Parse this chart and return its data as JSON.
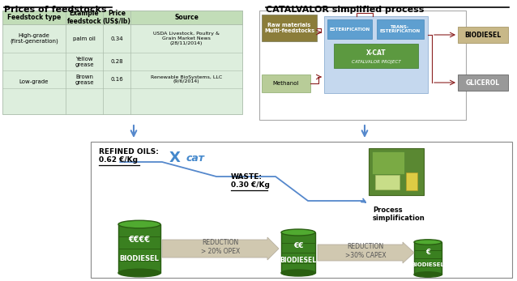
{
  "title_left": "Prices of feedstocks",
  "title_right": "CATALVALOR simplified process",
  "table_bg": "#ddeedd",
  "table_header_bg": "#c2ddb8",
  "raw_materials_color": "#8b7d3a",
  "methanol_color": "#b8cc98",
  "process_box_bg": "#c5d8ee",
  "esterification_color": "#5e9fd0",
  "xcat_color": "#5c9940",
  "biodiesel_box_color": "#c8b888",
  "glicerol_box_color": "#999999",
  "barrel_color": "#3a8020",
  "barrel_dark": "#2a5e12",
  "barrel_light": "#50aa30",
  "arrow_fill": "#d8cfc0",
  "arrow_edge": "#c0b8a8",
  "line_color": "#5588cc",
  "dark_red": "#8b2020",
  "refined_oils_label": "REFINED OILS:",
  "refined_oils_price": "0.62 €/Kg",
  "waste_label": "WASTE:",
  "waste_price": "0.30 €/Kg",
  "reduction1_text": "REDUCTION\n> 20% OPEX",
  "reduction2_text": "REDUCTION\n>30% CAPEX",
  "process_simplification": "Process\nsimplification",
  "xcaт_color": "#4488cc"
}
